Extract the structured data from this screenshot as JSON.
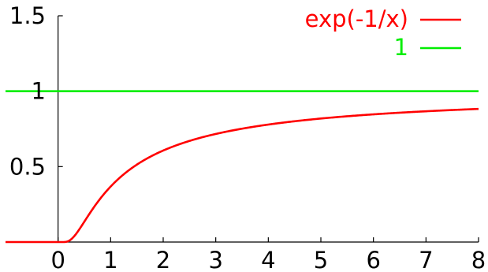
{
  "chart_data": {
    "type": "line",
    "title": "",
    "xlabel": "",
    "ylabel": "",
    "xlim": [
      -1,
      8
    ],
    "ylim": [
      0,
      1.5
    ],
    "x_ticks": [
      0,
      1,
      2,
      3,
      4,
      5,
      6,
      7,
      8
    ],
    "x_tick_labels": [
      "0",
      "1",
      "2",
      "3",
      "4",
      "5",
      "6",
      "7",
      "8"
    ],
    "y_ticks": [
      0.5,
      1,
      1.5
    ],
    "y_tick_labels": [
      "0.5",
      "1",
      "1.5"
    ],
    "grid": false,
    "legend_position": "top-right",
    "series": [
      {
        "name": "exp(-1/x)",
        "color": "#ff0000",
        "x": [
          -1,
          0,
          0.1,
          0.2,
          0.3,
          0.4,
          0.5,
          0.75,
          1,
          1.5,
          2,
          3,
          4,
          5,
          6,
          7,
          8
        ],
        "y": [
          0,
          0,
          4.54e-05,
          0.00674,
          0.0357,
          0.0821,
          0.1353,
          0.2636,
          0.3679,
          0.5134,
          0.6065,
          0.7165,
          0.7788,
          0.8187,
          0.8465,
          0.8669,
          0.8825
        ]
      },
      {
        "name": "1",
        "color": "#00ee00",
        "x": [
          -1,
          8
        ],
        "y": [
          1,
          1
        ]
      }
    ]
  }
}
